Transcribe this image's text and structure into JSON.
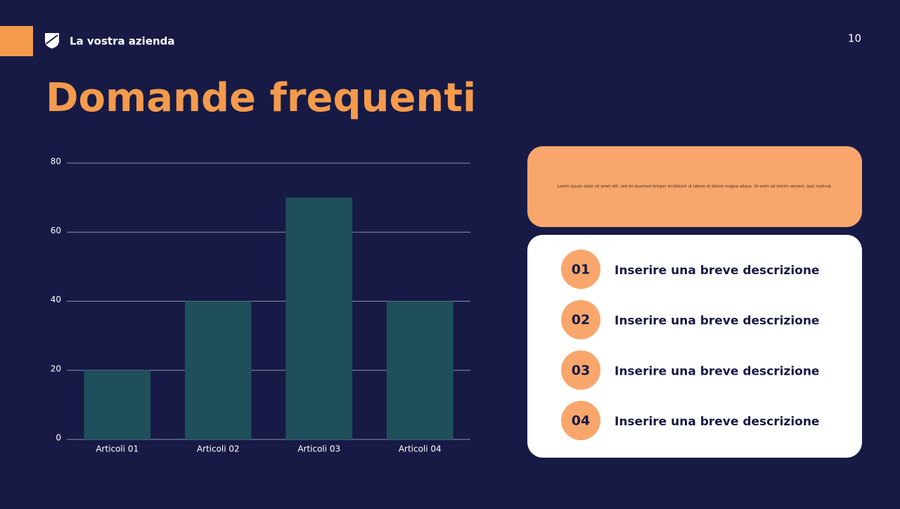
{
  "header": {
    "company": "La vostra azienda",
    "page_number": "10"
  },
  "title": "Domande frequenti",
  "chart_data": {
    "type": "bar",
    "categories": [
      "Articoli 01",
      "Articoli 02",
      "Articoli 03",
      "Articoli 04"
    ],
    "values": [
      20,
      40,
      70,
      40
    ],
    "color": "#1f4f5a",
    "ylim": [
      0,
      80
    ],
    "yticks": [
      0,
      20,
      40,
      60,
      80
    ],
    "grid": true
  },
  "note": {
    "text": "Lorem ipsum dolor sit amet elit, sed do eiusmod tempor incididunt ut labore et dolore magna aliqua. Ut enim ad minim veniam, quis nostrud."
  },
  "list": {
    "items": [
      {
        "number": "01",
        "text": "Inserire una breve descrizione"
      },
      {
        "number": "02",
        "text": "Inserire una breve descrizione"
      },
      {
        "number": "03",
        "text": "Inserire una breve descrizione"
      },
      {
        "number": "04",
        "text": "Inserire una breve descrizione"
      }
    ]
  }
}
